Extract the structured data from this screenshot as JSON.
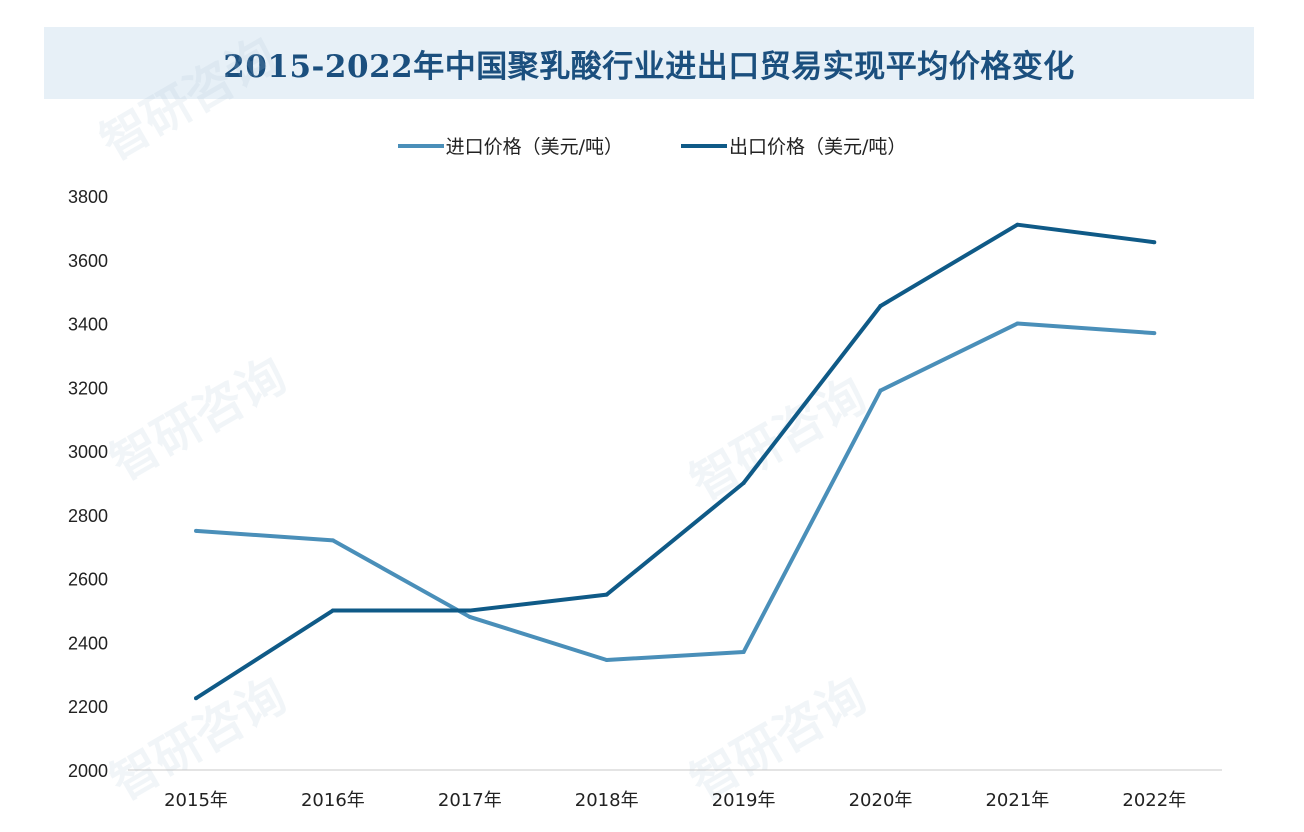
{
  "chart_data": {
    "type": "line",
    "title": "2015-2022年中国聚乳酸行业进出口贸易实现平均价格变化",
    "categories": [
      "2015年",
      "2016年",
      "2017年",
      "2018年",
      "2019年",
      "2020年",
      "2021年",
      "2022年"
    ],
    "series": [
      {
        "name": "进口价格（美元/吨）",
        "color": "#4a8fb9",
        "values": [
          2750,
          2720,
          2480,
          2345,
          2370,
          3190,
          3400,
          3370
        ]
      },
      {
        "name": "出口价格（美元/吨）",
        "color": "#0f5a87",
        "values": [
          2225,
          2500,
          2500,
          2550,
          2900,
          3455,
          3710,
          3655
        ]
      }
    ],
    "ylim": [
      2000,
      3800
    ],
    "yticks": [
      "2000",
      "2200",
      "2400",
      "2600",
      "2800",
      "3000",
      "3200",
      "3400",
      "3600",
      "3800"
    ],
    "xlabel": "",
    "ylabel": "",
    "grid": false,
    "legend_position": "top"
  },
  "watermark": "智研咨询"
}
